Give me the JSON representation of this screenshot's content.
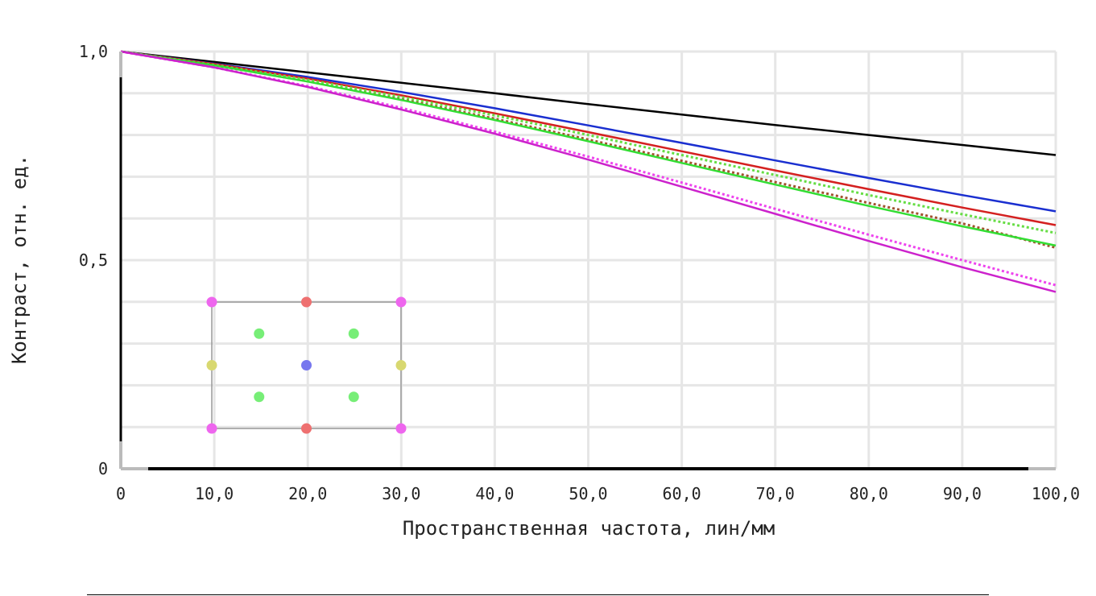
{
  "chart_data": {
    "type": "line",
    "title": "",
    "xlabel": "Пространственная частота, лин/мм",
    "ylabel": "Контраст, отн. ед.",
    "xlim": [
      0,
      100
    ],
    "ylim": [
      0,
      1
    ],
    "grid": true,
    "x_ticks": [
      "0",
      "10,0",
      "20,0",
      "30,0",
      "40,0",
      "50,0",
      "60,0",
      "70,0",
      "80,0",
      "90,0",
      "100,0"
    ],
    "y_ticks": [
      "0",
      "0,5",
      "1,0"
    ],
    "x": [
      0,
      10,
      20,
      30,
      40,
      50,
      60,
      70,
      80,
      90,
      100
    ],
    "series": [
      {
        "color": "#000000",
        "style": "solid",
        "values": [
          1.0,
          0.975,
          0.95,
          0.925,
          0.9,
          0.874,
          0.849,
          0.824,
          0.8,
          0.776,
          0.752
        ]
      },
      {
        "color": "#1a2fd0",
        "style": "solid",
        "values": [
          1.0,
          0.971,
          0.939,
          0.903,
          0.864,
          0.823,
          0.781,
          0.739,
          0.697,
          0.656,
          0.617
        ]
      },
      {
        "color": "#d42020",
        "style": "solid",
        "values": [
          1.0,
          0.97,
          0.935,
          0.895,
          0.852,
          0.807,
          0.761,
          0.715,
          0.67,
          0.626,
          0.584
        ]
      },
      {
        "color": "#a0522d",
        "style": "dotted",
        "values": [
          1.0,
          0.967,
          0.929,
          0.886,
          0.839,
          0.789,
          0.738,
          0.687,
          0.637,
          0.588,
          0.53
        ]
      },
      {
        "color": "#66dd44",
        "style": "dotted",
        "values": [
          1.0,
          0.968,
          0.932,
          0.891,
          0.847,
          0.8,
          0.752,
          0.704,
          0.656,
          0.61,
          0.565
        ]
      },
      {
        "color": "#33dd33",
        "style": "solid",
        "values": [
          1.0,
          0.967,
          0.928,
          0.884,
          0.836,
          0.785,
          0.733,
          0.681,
          0.63,
          0.581,
          0.535
        ]
      },
      {
        "color": "#ee44ee",
        "style": "dotted",
        "values": [
          1.0,
          0.962,
          0.917,
          0.865,
          0.808,
          0.748,
          0.686,
          0.623,
          0.561,
          0.5,
          0.44
        ]
      },
      {
        "color": "#cc22cc",
        "style": "solid",
        "values": [
          1.0,
          0.962,
          0.915,
          0.861,
          0.803,
          0.741,
          0.676,
          0.611,
          0.546,
          0.483,
          0.424
        ]
      }
    ],
    "field_points": [
      {
        "fx": 0,
        "fy": 0,
        "color": "#ee66ee"
      },
      {
        "fx": 0.5,
        "fy": 0,
        "color": "#ee7070"
      },
      {
        "fx": 1,
        "fy": 0,
        "color": "#ee66ee"
      },
      {
        "fx": 0.25,
        "fy": 0.25,
        "color": "#77ee77"
      },
      {
        "fx": 0.75,
        "fy": 0.25,
        "color": "#77ee77"
      },
      {
        "fx": 0,
        "fy": 0.5,
        "color": "#d8d870"
      },
      {
        "fx": 0.5,
        "fy": 0.5,
        "color": "#7777ee"
      },
      {
        "fx": 1,
        "fy": 0.5,
        "color": "#d8d870"
      },
      {
        "fx": 0.25,
        "fy": 0.75,
        "color": "#77ee77"
      },
      {
        "fx": 0.75,
        "fy": 0.75,
        "color": "#77ee77"
      },
      {
        "fx": 0,
        "fy": 1,
        "color": "#ee66ee"
      },
      {
        "fx": 0.5,
        "fy": 1,
        "color": "#ee7070"
      },
      {
        "fx": 1,
        "fy": 1,
        "color": "#ee66ee"
      }
    ]
  }
}
